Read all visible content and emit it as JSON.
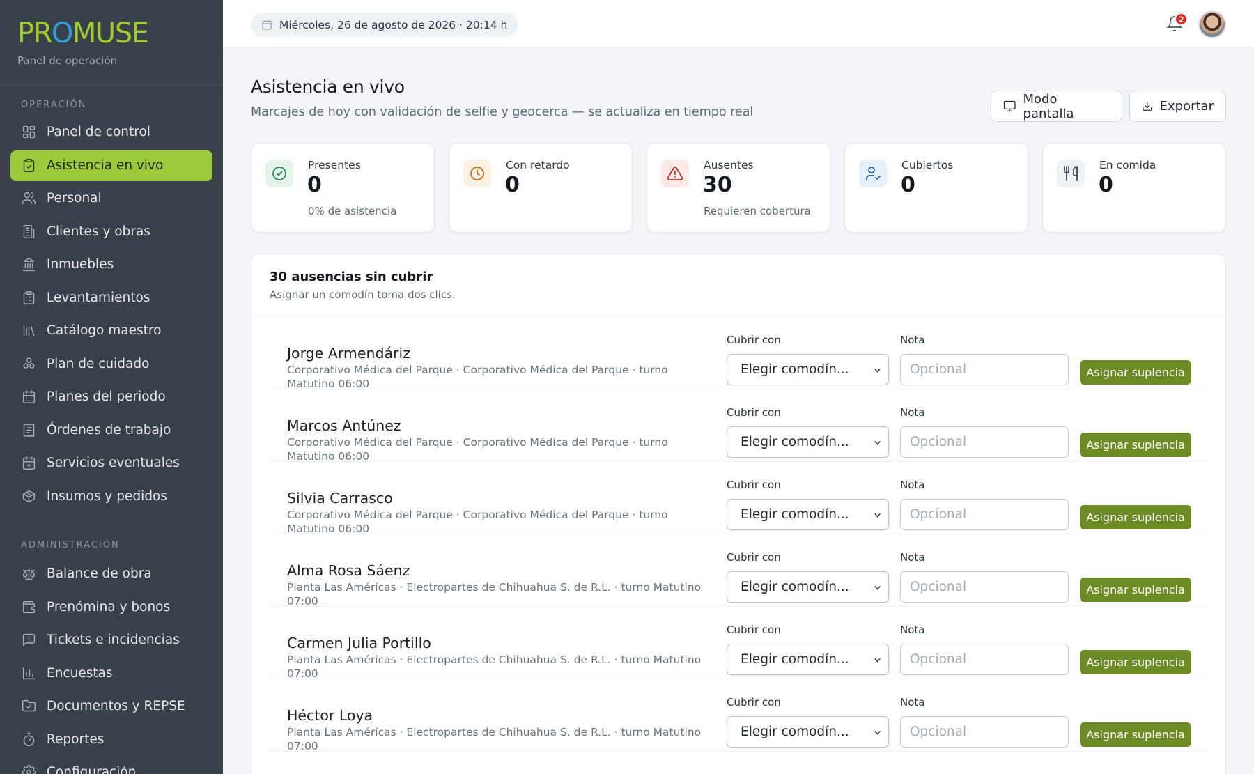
{
  "brand": {
    "logo_pre": "PR",
    "logo_o": "O",
    "logo_post": "MUSE",
    "subtitle": "Panel de operación"
  },
  "sidebar": {
    "section_operacion": "OPERACIÓN",
    "operacion": [
      {
        "label": "Panel de control",
        "icon": "grid-icon"
      },
      {
        "label": "Asistencia en vivo",
        "icon": "clipboard-check-icon",
        "active": true
      },
      {
        "label": "Personal",
        "icon": "users-icon"
      },
      {
        "label": "Clientes y obras",
        "icon": "building-icon"
      },
      {
        "label": "Inmuebles",
        "icon": "landmark-icon"
      },
      {
        "label": "Levantamientos",
        "icon": "clipboard-list-icon"
      },
      {
        "label": "Catálogo maestro",
        "icon": "library-icon"
      },
      {
        "label": "Plan de cuidado",
        "icon": "shapes-icon"
      },
      {
        "label": "Planes del periodo",
        "icon": "calendar-icon"
      },
      {
        "label": "Órdenes de trabajo",
        "icon": "receipt-icon"
      },
      {
        "label": "Servicios eventuales",
        "icon": "calendar-plus-icon"
      },
      {
        "label": "Insumos y pedidos",
        "icon": "package-icon"
      }
    ],
    "section_administracion": "ADMINISTRACIÓN",
    "administracion": [
      {
        "label": "Balance de obra",
        "icon": "scale-icon"
      },
      {
        "label": "Prenómina y bonos",
        "icon": "wallet-icon"
      },
      {
        "label": "Tickets e incidencias",
        "icon": "message-alert-icon"
      },
      {
        "label": "Encuestas",
        "icon": "bar-chart-icon"
      },
      {
        "label": "Documentos y REPSE",
        "icon": "folder-check-icon"
      },
      {
        "label": "Reportes",
        "icon": "timer-icon"
      },
      {
        "label": "Configuración",
        "icon": "settings-icon"
      }
    ]
  },
  "topbar": {
    "date": "Miércoles, 26 de agosto de 2026 · 20:14 h",
    "notifications": "2"
  },
  "header": {
    "title": "Asistencia en vivo",
    "subtitle": "Marcajes de hoy con validación de selfie y geocerca — se actualiza en tiempo real",
    "modo_pantalla": "Modo pantalla",
    "exportar": "Exportar"
  },
  "stats": [
    {
      "label": "Presentes",
      "value": "0",
      "note": "0% de asistencia",
      "color": "#1f8a5a",
      "bg": "#e6f4ec",
      "icon": "check-circle-icon"
    },
    {
      "label": "Con retardo",
      "value": "0",
      "note": "",
      "color": "#c2701a",
      "bg": "#fdf1e3",
      "icon": "clock-icon"
    },
    {
      "label": "Ausentes",
      "value": "30",
      "note": "Requieren cobertura",
      "color": "#c62828",
      "bg": "#fde8e8",
      "icon": "alert-triangle-icon"
    },
    {
      "label": "Cubiertos",
      "value": "0",
      "note": "",
      "color": "#2563a8",
      "bg": "#e6f0fb",
      "icon": "user-check-icon"
    },
    {
      "label": "En comida",
      "value": "0",
      "note": "",
      "color": "#3a4350",
      "bg": "#eef1f5",
      "icon": "utensils-icon"
    }
  ],
  "panel": {
    "title": "30 ausencias sin cubrir",
    "subtitle": "Asignar un comodín toma dos clics.",
    "field_cubrir": "Cubrir con",
    "field_nota": "Nota",
    "select_value": "Elegir comodín...",
    "nota_placeholder": "Opcional",
    "assign_label": "Asignar suplencia",
    "rows": [
      {
        "name": "Jorge Armendáriz",
        "detail": "Corporativo Médica del Parque · Corporativo Médica del Parque · turno Matutino 06:00"
      },
      {
        "name": "Marcos Antúnez",
        "detail": "Corporativo Médica del Parque · Corporativo Médica del Parque · turno Matutino 06:00"
      },
      {
        "name": "Silvia Carrasco",
        "detail": "Corporativo Médica del Parque · Corporativo Médica del Parque · turno Matutino 06:00"
      },
      {
        "name": "Alma Rosa Sáenz",
        "detail": "Planta Las Américas · Electropartes de Chihuahua S. de R.L. · turno Matutino 07:00"
      },
      {
        "name": "Carmen Julia Portillo",
        "detail": "Planta Las Américas · Electropartes de Chihuahua S. de R.L. · turno Matutino 07:00"
      },
      {
        "name": "Héctor Loya",
        "detail": "Planta Las Américas · Electropartes de Chihuahua S. de R.L. · turno Matutino 07:00"
      }
    ]
  }
}
